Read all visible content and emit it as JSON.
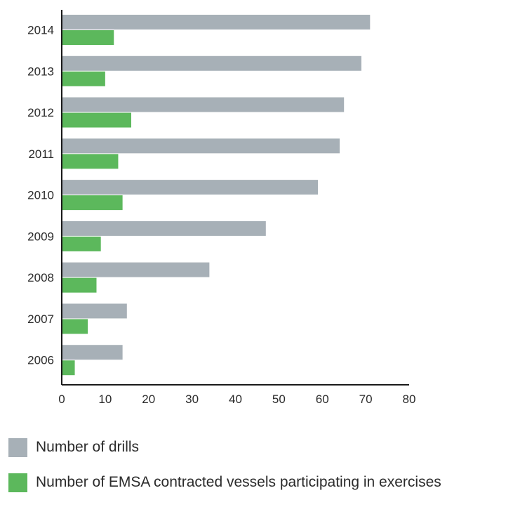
{
  "chart_data": {
    "type": "bar",
    "orientation": "horizontal",
    "categories": [
      "2014",
      "2013",
      "2012",
      "2011",
      "2010",
      "2009",
      "2008",
      "2007",
      "2006"
    ],
    "series": [
      {
        "name": "Number of drills",
        "color": "#a7b0b7",
        "values": [
          71,
          69,
          65,
          64,
          59,
          47,
          34,
          15,
          14
        ]
      },
      {
        "name": "Number of EMSA contracted vessels participating in exercises",
        "color": "#5cb85c",
        "values": [
          12,
          10,
          16,
          13,
          14,
          9,
          8,
          6,
          3
        ]
      }
    ],
    "xlim": [
      0,
      80
    ],
    "xticks": [
      0,
      10,
      20,
      30,
      40,
      50,
      60,
      70,
      80
    ],
    "grid": false,
    "legend_position": "bottom-left"
  }
}
